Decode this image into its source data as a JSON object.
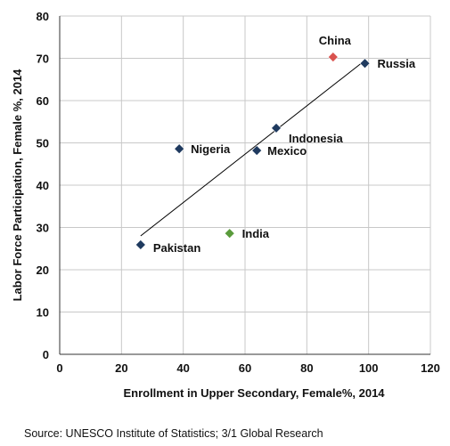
{
  "chart_data": {
    "type": "scatter",
    "xlabel": "Enrollment in Upper Secondary, Female%, 2014",
    "ylabel": "Labor Force Participation, Female %, 2014",
    "xlim": [
      0,
      120
    ],
    "ylim": [
      0,
      80
    ],
    "xticks": [
      0,
      20,
      40,
      60,
      80,
      100,
      120
    ],
    "yticks": [
      0,
      10,
      20,
      30,
      40,
      50,
      60,
      70,
      80
    ],
    "grid": "both",
    "points": [
      {
        "label": "China",
        "x": 88.5,
        "y": 70.3,
        "color": "#d9534f"
      },
      {
        "label": "Russia",
        "x": 98.8,
        "y": 68.8,
        "color": "#1f3a5f"
      },
      {
        "label": "Indonesia",
        "x": 70.1,
        "y": 53.5,
        "color": "#1f3a5f"
      },
      {
        "label": "Nigeria",
        "x": 38.7,
        "y": 48.6,
        "color": "#1f3a5f"
      },
      {
        "label": "Mexico",
        "x": 63.8,
        "y": 48.2,
        "color": "#1f3a5f"
      },
      {
        "label": "India",
        "x": 55.0,
        "y": 28.6,
        "color": "#5a9b3c"
      },
      {
        "label": "Pakistan",
        "x": 26.2,
        "y": 25.9,
        "color": "#1f3a5f"
      }
    ],
    "trendline": {
      "x": [
        26.2,
        98.8
      ],
      "y": [
        28.0,
        69.5
      ]
    }
  },
  "source": "Source: UNESCO Institute of Statistics; 3/1 Global Research"
}
